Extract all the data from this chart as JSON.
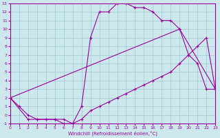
{
  "xlabel": "Windchill (Refroidissement éolien,°C)",
  "xlim": [
    0,
    23
  ],
  "ylim": [
    -1,
    13
  ],
  "xticks": [
    0,
    1,
    2,
    3,
    4,
    5,
    6,
    7,
    8,
    9,
    10,
    11,
    12,
    13,
    14,
    15,
    16,
    17,
    18,
    19,
    20,
    21,
    22,
    23
  ],
  "yticks": [
    -1,
    0,
    1,
    2,
    3,
    4,
    5,
    6,
    7,
    8,
    9,
    10,
    11,
    12,
    13
  ],
  "bg_color": "#cce8ed",
  "grid_color": "#a0c8d0",
  "line_color": "#990099",
  "line1_x": [
    0,
    1,
    2,
    3,
    4,
    5,
    6,
    7,
    8,
    9,
    10,
    11,
    12,
    13,
    14,
    15,
    16,
    17,
    18,
    19,
    20,
    21,
    22,
    23
  ],
  "line1_y": [
    2,
    1,
    0,
    -0.5,
    -0.5,
    -0.5,
    -1,
    -1,
    1,
    9,
    12,
    12,
    13,
    13,
    12.5,
    12.5,
    12,
    11,
    11,
    10,
    7,
    6,
    3,
    3
  ],
  "line2_x": [
    0,
    2,
    3,
    4,
    5,
    6,
    7,
    8,
    9,
    10,
    11,
    12,
    13,
    14,
    15,
    16,
    17,
    18,
    19,
    20,
    21,
    22,
    23
  ],
  "line2_y": [
    2,
    -0.5,
    -0.5,
    -0.5,
    -0.5,
    -0.5,
    -1,
    -0.5,
    0.5,
    1,
    1.5,
    2,
    2.5,
    3,
    3.5,
    4,
    4.5,
    5,
    6,
    7,
    8,
    9,
    3
  ],
  "line3_x": [
    0,
    19,
    23
  ],
  "line3_y": [
    2,
    10,
    3
  ]
}
